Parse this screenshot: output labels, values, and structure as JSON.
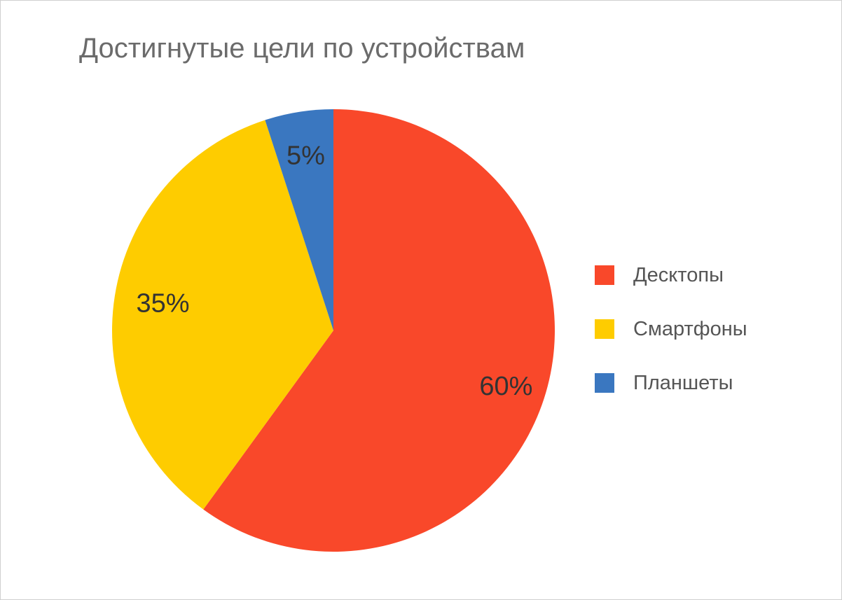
{
  "chart_data": {
    "type": "pie",
    "title": "Достигнутые цели по устройствам",
    "categories": [
      "Десктопы",
      "Смартфоны",
      "Планшеты"
    ],
    "values": [
      60,
      35,
      5
    ],
    "labels": [
      "60%",
      "35%",
      "5%"
    ],
    "colors": [
      "#f9482a",
      "#fecc00",
      "#3a77c0"
    ],
    "legend_position": "right"
  }
}
